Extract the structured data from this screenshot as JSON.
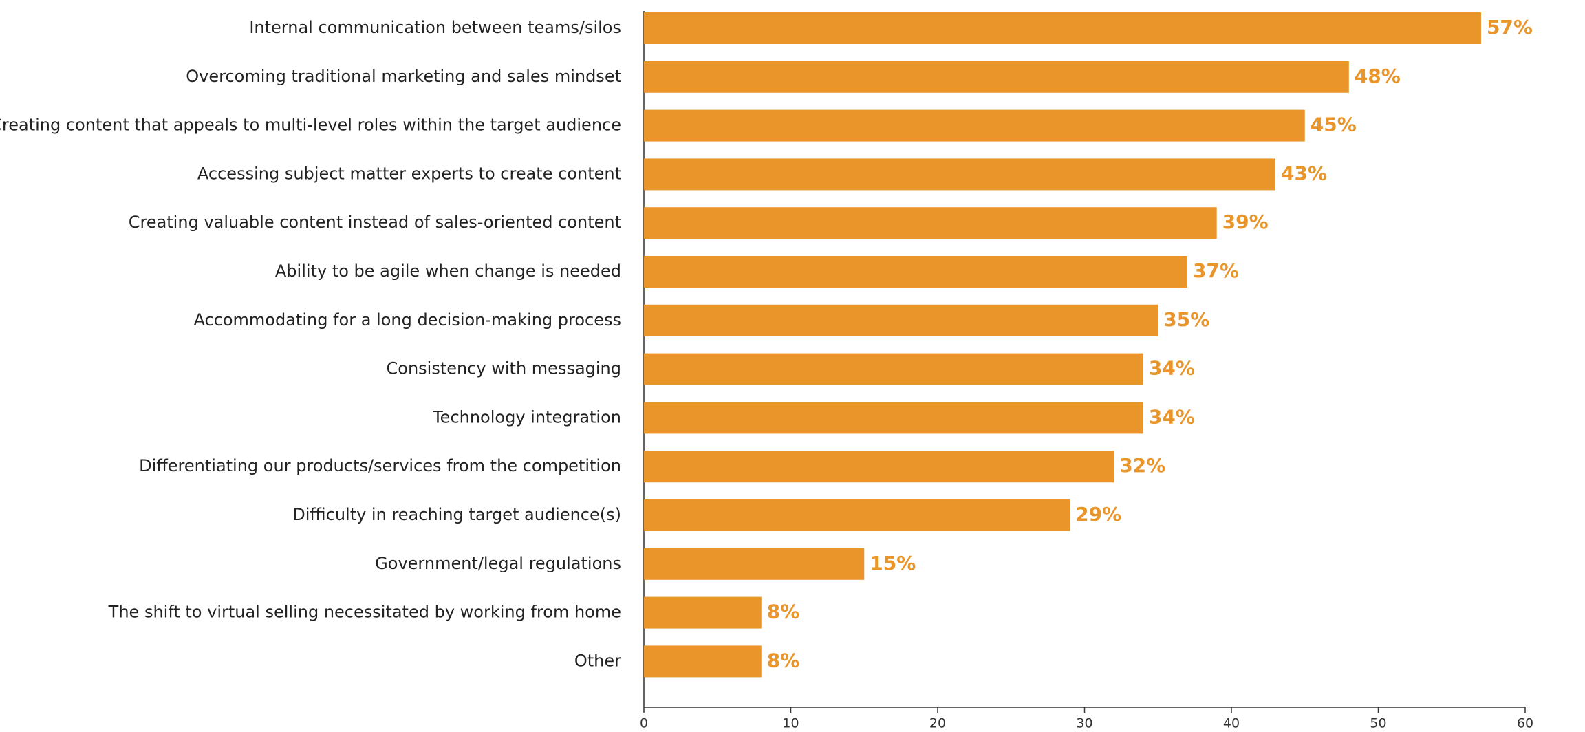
{
  "chart_data": {
    "type": "bar",
    "orientation": "horizontal",
    "categories": [
      "Internal communication between teams/silos",
      "Overcoming traditional marketing and sales mindset",
      "Creating content that appeals to multi-level roles within the target audience",
      "Accessing subject matter experts to create content",
      "Creating valuable content instead of sales-oriented content",
      "Ability to be agile when change is needed",
      "Accommodating for a long decision-making process",
      "Consistency with messaging",
      "Technology integration",
      "Differentiating our products/services from the competition",
      "Difficulty in reaching target audience(s)",
      "Government/legal regulations",
      "The shift to virtual selling necessitated by working from home",
      "Other"
    ],
    "values": [
      57,
      48,
      45,
      43,
      39,
      37,
      35,
      34,
      34,
      32,
      29,
      15,
      8,
      8
    ],
    "value_labels": [
      "57%",
      "48%",
      "45%",
      "43%",
      "39%",
      "37%",
      "35%",
      "34%",
      "34%",
      "32%",
      "29%",
      "15%",
      "8%",
      "8%"
    ],
    "color": "#e9952a",
    "xlim": [
      0,
      60
    ],
    "xticks": [
      0,
      10,
      20,
      30,
      40,
      50,
      60
    ],
    "grid": false
  }
}
